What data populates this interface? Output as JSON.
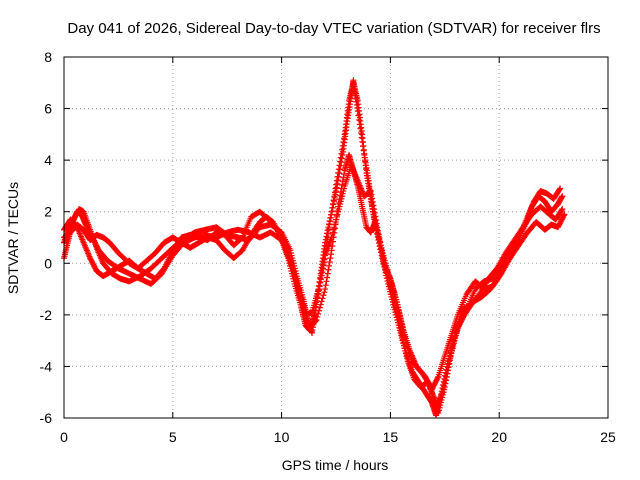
{
  "chart_data": {
    "type": "scatter",
    "title": "Day 041 of 2026, Sidereal Day-to-day VTEC variation (SDTVAR) for receiver flrs",
    "xlabel": "GPS time / hours",
    "ylabel": "SDTVAR / TECUs",
    "xlim": [
      0,
      25
    ],
    "ylim": [
      -6,
      8
    ],
    "xticks": [
      0,
      5,
      10,
      15,
      20,
      25
    ],
    "yticks": [
      -6,
      -4,
      -2,
      0,
      2,
      4,
      6,
      8
    ],
    "xtick_labels": [
      "0",
      "5",
      "10",
      "15",
      "20",
      "25"
    ],
    "ytick_labels": [
      "-6",
      "-4",
      "-2",
      "0",
      "2",
      "4",
      "6",
      "8"
    ],
    "grid": true,
    "marker": "+",
    "series": [
      {
        "name": "SDTVAR",
        "color": "#ff0000",
        "tracks": [
          [
            [
              0.0,
              0.2
            ],
            [
              0.2,
              0.9
            ],
            [
              0.4,
              1.6
            ],
            [
              0.6,
              2.0
            ],
            [
              0.8,
              1.9
            ],
            [
              1.0,
              1.5
            ],
            [
              1.3,
              1.0
            ],
            [
              1.6,
              0.5
            ],
            [
              2.0,
              0.1
            ],
            [
              2.5,
              -0.2
            ],
            [
              3.0,
              -0.4
            ],
            [
              3.5,
              -0.6
            ],
            [
              4.0,
              -0.8
            ],
            [
              4.5,
              -0.4
            ],
            [
              5.0,
              0.3
            ],
            [
              5.5,
              0.8
            ],
            [
              6.0,
              1.0
            ],
            [
              6.5,
              1.1
            ],
            [
              7.0,
              1.0
            ],
            [
              7.5,
              1.2
            ],
            [
              8.0,
              1.3
            ],
            [
              8.5,
              1.2
            ],
            [
              9.0,
              1.0
            ],
            [
              9.5,
              1.2
            ],
            [
              10.0,
              0.9
            ],
            [
              10.3,
              0.2
            ],
            [
              10.6,
              -0.8
            ],
            [
              10.9,
              -1.7
            ],
            [
              11.1,
              -2.4
            ],
            [
              11.3,
              -2.6
            ],
            [
              11.5,
              -2.0
            ],
            [
              11.8,
              -0.4
            ],
            [
              12.0,
              0.8
            ],
            [
              12.3,
              2.0
            ],
            [
              12.6,
              3.5
            ],
            [
              12.9,
              5.0
            ],
            [
              13.1,
              6.3
            ],
            [
              13.3,
              7.0
            ],
            [
              13.5,
              6.3
            ],
            [
              13.7,
              5.0
            ],
            [
              13.9,
              3.5
            ],
            [
              14.1,
              2.5
            ],
            [
              14.3,
              1.5
            ],
            [
              14.6,
              0.3
            ],
            [
              14.9,
              -0.8
            ],
            [
              15.2,
              -1.8
            ],
            [
              15.5,
              -2.8
            ],
            [
              15.8,
              -3.8
            ],
            [
              16.1,
              -4.5
            ],
            [
              16.4,
              -4.8
            ],
            [
              16.7,
              -4.6
            ],
            [
              17.0,
              -5.2
            ],
            [
              17.2,
              -5.8
            ],
            [
              17.5,
              -4.8
            ],
            [
              17.8,
              -3.5
            ],
            [
              18.1,
              -2.5
            ],
            [
              18.4,
              -2.0
            ],
            [
              18.8,
              -1.5
            ],
            [
              19.2,
              -1.3
            ],
            [
              19.6,
              -1.0
            ],
            [
              20.0,
              -0.5
            ],
            [
              20.4,
              0.2
            ],
            [
              20.8,
              0.8
            ],
            [
              21.2,
              1.5
            ],
            [
              21.5,
              2.2
            ],
            [
              21.8,
              2.6
            ],
            [
              22.1,
              2.4
            ],
            [
              22.4,
              2.0
            ],
            [
              22.7,
              2.3
            ],
            [
              22.9,
              2.6
            ]
          ],
          [
            [
              0.0,
              0.8
            ],
            [
              0.2,
              1.4
            ],
            [
              0.5,
              1.8
            ],
            [
              0.7,
              2.1
            ],
            [
              0.9,
              2.0
            ],
            [
              1.2,
              1.3
            ],
            [
              1.5,
              0.6
            ],
            [
              1.8,
              0.0
            ],
            [
              2.2,
              -0.4
            ],
            [
              2.6,
              -0.6
            ],
            [
              3.0,
              -0.7
            ],
            [
              3.5,
              -0.5
            ],
            [
              4.0,
              -0.2
            ],
            [
              4.5,
              0.2
            ],
            [
              5.0,
              0.6
            ],
            [
              5.5,
              0.9
            ],
            [
              6.0,
              1.2
            ],
            [
              6.5,
              1.3
            ],
            [
              7.0,
              1.4
            ],
            [
              7.5,
              1.1
            ],
            [
              8.0,
              1.0
            ],
            [
              8.5,
              0.9
            ],
            [
              9.0,
              1.4
            ],
            [
              9.5,
              1.5
            ],
            [
              10.0,
              1.2
            ],
            [
              10.4,
              0.5
            ],
            [
              10.7,
              -0.5
            ],
            [
              11.0,
              -1.4
            ],
            [
              11.2,
              -2.2
            ],
            [
              11.4,
              -2.7
            ],
            [
              11.6,
              -1.6
            ],
            [
              11.9,
              -0.2
            ],
            [
              12.2,
              1.5
            ],
            [
              12.5,
              2.8
            ],
            [
              12.8,
              4.2
            ],
            [
              13.0,
              5.4
            ],
            [
              13.2,
              6.5
            ],
            [
              13.3,
              7.1
            ],
            [
              13.5,
              5.9
            ],
            [
              13.8,
              4.2
            ],
            [
              14.0,
              3.2
            ],
            [
              14.2,
              2.0
            ],
            [
              14.5,
              0.8
            ],
            [
              14.8,
              -0.3
            ],
            [
              15.1,
              -1.2
            ],
            [
              15.4,
              -2.3
            ],
            [
              15.7,
              -3.4
            ],
            [
              16.0,
              -4.2
            ],
            [
              16.3,
              -4.6
            ],
            [
              16.6,
              -5.0
            ],
            [
              16.9,
              -5.4
            ],
            [
              17.1,
              -5.9
            ],
            [
              17.3,
              -5.2
            ],
            [
              17.6,
              -4.0
            ],
            [
              17.9,
              -3.0
            ],
            [
              18.2,
              -2.3
            ],
            [
              18.5,
              -1.8
            ],
            [
              18.9,
              -1.0
            ],
            [
              19.3,
              -0.7
            ],
            [
              19.7,
              -0.6
            ],
            [
              20.1,
              -0.1
            ],
            [
              20.5,
              0.5
            ],
            [
              20.9,
              1.0
            ],
            [
              21.3,
              1.8
            ],
            [
              21.6,
              2.4
            ],
            [
              21.9,
              2.8
            ],
            [
              22.2,
              2.7
            ],
            [
              22.5,
              2.5
            ],
            [
              22.8,
              2.9
            ]
          ],
          [
            [
              0.0,
              1.0
            ],
            [
              0.3,
              1.2
            ],
            [
              0.6,
              1.5
            ],
            [
              0.9,
              1.3
            ],
            [
              1.2,
              0.9
            ],
            [
              1.5,
              1.1
            ],
            [
              1.8,
              1.0
            ],
            [
              2.1,
              0.8
            ],
            [
              2.5,
              0.4
            ],
            [
              3.0,
              0.0
            ],
            [
              3.4,
              -0.2
            ],
            [
              3.8,
              0.1
            ],
            [
              4.2,
              0.4
            ],
            [
              4.6,
              0.8
            ],
            [
              5.0,
              1.0
            ],
            [
              5.4,
              0.8
            ],
            [
              5.8,
              0.6
            ],
            [
              6.2,
              0.8
            ],
            [
              6.6,
              1.0
            ],
            [
              7.0,
              0.9
            ],
            [
              7.4,
              0.5
            ],
            [
              7.8,
              0.2
            ],
            [
              8.2,
              0.5
            ],
            [
              8.6,
              1.1
            ],
            [
              9.0,
              1.6
            ],
            [
              9.3,
              1.8
            ],
            [
              9.6,
              1.6
            ],
            [
              10.0,
              1.0
            ],
            [
              10.3,
              0.3
            ],
            [
              10.6,
              -0.4
            ],
            [
              11.0,
              -1.6
            ],
            [
              11.3,
              -2.5
            ],
            [
              11.6,
              -2.2
            ],
            [
              12.0,
              -1.0
            ],
            [
              12.3,
              0.5
            ],
            [
              12.6,
              2.2
            ],
            [
              12.9,
              3.6
            ],
            [
              13.1,
              4.2
            ],
            [
              13.3,
              3.6
            ],
            [
              13.5,
              3.0
            ],
            [
              13.7,
              2.2
            ],
            [
              13.9,
              1.4
            ],
            [
              14.1,
              1.2
            ],
            [
              14.3,
              1.6
            ],
            [
              14.5,
              0.9
            ],
            [
              14.8,
              -0.1
            ],
            [
              15.1,
              -0.9
            ],
            [
              15.4,
              -1.9
            ],
            [
              15.7,
              -3.0
            ],
            [
              16.0,
              -3.8
            ],
            [
              16.3,
              -4.1
            ],
            [
              16.6,
              -4.4
            ],
            [
              16.9,
              -4.9
            ],
            [
              17.2,
              -4.4
            ],
            [
              17.5,
              -3.6
            ],
            [
              17.8,
              -2.8
            ],
            [
              18.1,
              -2.0
            ],
            [
              18.5,
              -1.2
            ],
            [
              18.9,
              -0.7
            ],
            [
              19.3,
              -1.0
            ],
            [
              19.7,
              -0.9
            ],
            [
              20.1,
              -0.4
            ],
            [
              20.5,
              0.2
            ],
            [
              20.9,
              0.7
            ],
            [
              21.3,
              1.2
            ],
            [
              21.7,
              1.6
            ],
            [
              22.1,
              1.3
            ],
            [
              22.4,
              1.5
            ],
            [
              22.7,
              1.4
            ],
            [
              23.0,
              1.9
            ]
          ],
          [
            [
              0.0,
              1.3
            ],
            [
              0.3,
              1.7
            ],
            [
              0.6,
              1.4
            ],
            [
              0.9,
              0.8
            ],
            [
              1.2,
              0.2
            ],
            [
              1.5,
              -0.3
            ],
            [
              1.8,
              -0.5
            ],
            [
              2.2,
              -0.3
            ],
            [
              2.6,
              -0.1
            ],
            [
              3.0,
              0.1
            ],
            [
              3.4,
              -0.2
            ],
            [
              3.8,
              -0.4
            ],
            [
              4.2,
              -0.6
            ],
            [
              4.6,
              -0.2
            ],
            [
              5.0,
              0.5
            ],
            [
              5.4,
              1.0
            ],
            [
              5.8,
              1.1
            ],
            [
              6.2,
              1.0
            ],
            [
              6.6,
              0.9
            ],
            [
              7.0,
              1.2
            ],
            [
              7.4,
              1.1
            ],
            [
              7.8,
              0.7
            ],
            [
              8.2,
              1.0
            ],
            [
              8.6,
              1.8
            ],
            [
              9.0,
              2.0
            ],
            [
              9.4,
              1.7
            ],
            [
              9.8,
              1.3
            ],
            [
              10.2,
              0.6
            ],
            [
              10.5,
              -0.2
            ],
            [
              10.8,
              -1.2
            ],
            [
              11.1,
              -2.0
            ],
            [
              11.4,
              -1.9
            ],
            [
              11.7,
              -1.0
            ],
            [
              12.0,
              0.3
            ],
            [
              12.3,
              1.0
            ],
            [
              12.6,
              2.0
            ],
            [
              12.9,
              3.0
            ],
            [
              13.2,
              3.8
            ],
            [
              13.5,
              3.2
            ],
            [
              13.8,
              2.6
            ],
            [
              14.1,
              2.8
            ],
            [
              14.4,
              1.4
            ],
            [
              14.7,
              0.0
            ],
            [
              15.0,
              -0.6
            ],
            [
              15.3,
              -1.5
            ],
            [
              15.6,
              -2.6
            ],
            [
              15.9,
              -3.4
            ],
            [
              16.2,
              -4.0
            ],
            [
              16.5,
              -4.3
            ],
            [
              16.8,
              -4.7
            ],
            [
              17.1,
              -5.6
            ],
            [
              17.4,
              -5.0
            ],
            [
              17.7,
              -3.8
            ],
            [
              18.0,
              -2.7
            ],
            [
              18.3,
              -1.8
            ],
            [
              18.7,
              -1.6
            ],
            [
              19.1,
              -1.2
            ],
            [
              19.5,
              -0.6
            ],
            [
              19.9,
              -0.2
            ],
            [
              20.3,
              0.4
            ],
            [
              20.7,
              0.9
            ],
            [
              21.1,
              1.4
            ],
            [
              21.5,
              1.9
            ],
            [
              21.9,
              2.2
            ],
            [
              22.3,
              1.9
            ],
            [
              22.6,
              1.7
            ],
            [
              22.9,
              2.1
            ]
          ]
        ]
      }
    ]
  }
}
